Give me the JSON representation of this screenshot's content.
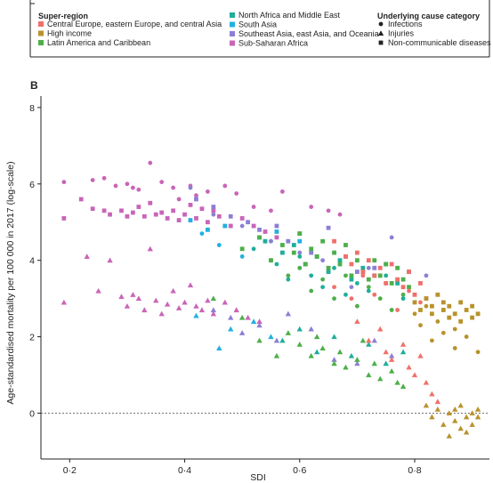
{
  "panel_label": "B",
  "chart_data": {
    "type": "scatter",
    "title": "",
    "xlabel": "SDI",
    "ylabel": "Age-standardised mortality per 100 000 in 2017 (log-scale)",
    "xlim": [
      0.15,
      0.93
    ],
    "ylim": [
      -1.2,
      8.3
    ],
    "xticks": [
      0.2,
      0.4,
      0.6,
      0.8
    ],
    "xtick_labels": [
      "0·2",
      "0·4",
      "0·6",
      "0·8"
    ],
    "yticks": [
      0,
      2,
      4,
      6,
      8
    ],
    "ytick_labels": [
      "0",
      "2",
      "4",
      "6",
      "8"
    ],
    "reference_line_y": 0,
    "legend": {
      "superregion_title": "Super-region",
      "superregions": [
        {
          "name": "Central Europe, eastern Europe, and central Asia",
          "color": "#f0706a"
        },
        {
          "name": "High income",
          "color": "#b8922c"
        },
        {
          "name": "Latin America and Caribbean",
          "color": "#4daf4a"
        },
        {
          "name": "North Africa and Middle East",
          "color": "#1fae9a"
        },
        {
          "name": "South Asia",
          "color": "#22b0e0"
        },
        {
          "name": "Southeast Asia, east Asia, and Oceania",
          "color": "#8c7fd4"
        },
        {
          "name": "Sub-Saharan Africa",
          "color": "#c965b8"
        }
      ],
      "cause_title": "Underlying cause category",
      "causes": [
        {
          "name": "Infections",
          "shape": "circle"
        },
        {
          "name": "Injuries",
          "shape": "triangle"
        },
        {
          "name": "Non-communicable diseases",
          "shape": "square"
        }
      ]
    },
    "series": [
      {
        "name": "Sub-Saharan Africa",
        "color": "#c965b8",
        "cause": "Infections",
        "x": [
          0.19,
          0.24,
          0.26,
          0.28,
          0.3,
          0.31,
          0.32,
          0.34,
          0.36,
          0.38,
          0.39,
          0.41,
          0.42,
          0.44,
          0.47,
          0.49,
          0.52,
          0.55,
          0.57,
          0.62,
          0.65,
          0.67
        ],
        "y": [
          6.05,
          6.1,
          6.15,
          5.95,
          6.0,
          5.9,
          5.85,
          6.55,
          6.05,
          5.9,
          5.6,
          5.95,
          5.7,
          5.8,
          5.95,
          5.75,
          5.4,
          5.3,
          5.8,
          5.4,
          5.3,
          5.2
        ]
      },
      {
        "name": "Sub-Saharan Africa",
        "color": "#c965b8",
        "cause": "Non-communicable diseases",
        "x": [
          0.19,
          0.22,
          0.24,
          0.26,
          0.27,
          0.29,
          0.3,
          0.31,
          0.32,
          0.33,
          0.34,
          0.35,
          0.36,
          0.37,
          0.38,
          0.39,
          0.4,
          0.41,
          0.42,
          0.43,
          0.44,
          0.45,
          0.46,
          0.48,
          0.5,
          0.52,
          0.54,
          0.56
        ],
        "y": [
          5.1,
          5.6,
          5.35,
          5.3,
          5.2,
          5.3,
          5.15,
          5.25,
          5.4,
          5.15,
          5.5,
          5.2,
          5.25,
          5.1,
          5.3,
          5.05,
          5.2,
          5.45,
          5.1,
          5.35,
          5.0,
          5.3,
          5.15,
          4.9,
          5.1,
          4.9,
          4.75,
          4.6
        ]
      },
      {
        "name": "Sub-Saharan Africa",
        "color": "#c965b8",
        "cause": "Injuries",
        "x": [
          0.19,
          0.23,
          0.25,
          0.27,
          0.29,
          0.3,
          0.31,
          0.32,
          0.33,
          0.34,
          0.35,
          0.36,
          0.37,
          0.38,
          0.39,
          0.4,
          0.41,
          0.42,
          0.43,
          0.44,
          0.45,
          0.47,
          0.49,
          0.51,
          0.53
        ],
        "y": [
          2.9,
          4.1,
          3.2,
          4.0,
          3.05,
          2.8,
          3.1,
          3.0,
          2.7,
          4.3,
          2.95,
          2.6,
          2.85,
          3.2,
          2.75,
          2.9,
          3.35,
          2.8,
          2.7,
          2.95,
          2.6,
          2.9,
          2.7,
          2.5,
          2.4
        ]
      },
      {
        "name": "South Asia",
        "color": "#22b0e0",
        "cause": "Infections",
        "x": [
          0.43,
          0.46,
          0.5,
          0.55,
          0.6,
          0.66
        ],
        "y": [
          4.7,
          4.4,
          4.1,
          4.5,
          3.8,
          4.2
        ]
      },
      {
        "name": "South Asia",
        "color": "#22b0e0",
        "cause": "Non-communicable diseases",
        "x": [
          0.41,
          0.44,
          0.47,
          0.53,
          0.56,
          0.6
        ],
        "y": [
          5.05,
          4.8,
          4.9,
          4.6,
          4.75,
          4.5
        ]
      },
      {
        "name": "South Asia",
        "color": "#22b0e0",
        "cause": "Injuries",
        "x": [
          0.42,
          0.46,
          0.48,
          0.52,
          0.55
        ],
        "y": [
          2.55,
          1.7,
          2.2,
          2.4,
          2.0
        ]
      },
      {
        "name": "Southeast Asia, east Asia, and Oceania",
        "color": "#8c7fd4",
        "cause": "Infections",
        "x": [
          0.41,
          0.45,
          0.5,
          0.55,
          0.6,
          0.64,
          0.69,
          0.72,
          0.76,
          0.82
        ],
        "y": [
          5.9,
          5.2,
          4.9,
          4.5,
          4.2,
          4.0,
          3.3,
          3.8,
          4.6,
          3.6
        ]
      },
      {
        "name": "Southeast Asia, east Asia, and Oceania",
        "color": "#8c7fd4",
        "cause": "Non-communicable diseases",
        "x": [
          0.42,
          0.45,
          0.48,
          0.51,
          0.53,
          0.56,
          0.58,
          0.6,
          0.62,
          0.65,
          0.68,
          0.7,
          0.73
        ],
        "y": [
          5.6,
          5.4,
          5.15,
          5.0,
          4.8,
          4.9,
          4.5,
          4.7,
          4.2,
          4.85,
          4.1,
          3.7,
          3.8
        ]
      },
      {
        "name": "Southeast Asia, east Asia, and Oceania",
        "color": "#8c7fd4",
        "cause": "Injuries",
        "x": [
          0.45,
          0.48,
          0.5,
          0.53,
          0.56,
          0.58,
          0.62,
          0.66,
          0.7,
          0.73,
          0.76
        ],
        "y": [
          2.7,
          2.5,
          2.1,
          2.3,
          1.9,
          2.6,
          2.2,
          1.4,
          1.3,
          1.9,
          1.5
        ]
      },
      {
        "name": "North Africa and Middle East",
        "color": "#1fae9a",
        "cause": "Infections",
        "x": [
          0.52,
          0.56,
          0.58,
          0.6,
          0.62,
          0.64,
          0.66,
          0.68,
          0.7,
          0.72,
          0.75,
          0.78
        ],
        "y": [
          4.3,
          3.9,
          3.5,
          4.1,
          3.6,
          3.3,
          3.8,
          3.1,
          3.4,
          3.2,
          3.6,
          3.0
        ]
      },
      {
        "name": "North Africa and Middle East",
        "color": "#1fae9a",
        "cause": "Non-communicable diseases",
        "x": [
          0.54,
          0.57,
          0.59,
          0.61,
          0.63,
          0.65,
          0.67,
          0.69,
          0.71,
          0.73,
          0.75,
          0.77,
          0.79
        ],
        "y": [
          4.5,
          4.2,
          4.4,
          3.9,
          4.1,
          3.7,
          4.0,
          3.5,
          3.8,
          3.6,
          3.9,
          3.4,
          3.7
        ]
      },
      {
        "name": "North Africa and Middle East",
        "color": "#1fae9a",
        "cause": "Injuries",
        "x": [
          0.57,
          0.6,
          0.63,
          0.66,
          0.69,
          0.72,
          0.75,
          0.78
        ],
        "y": [
          1.9,
          2.2,
          1.6,
          2.0,
          1.5,
          1.8,
          1.3,
          1.6
        ]
      },
      {
        "name": "Latin America and Caribbean",
        "color": "#4daf4a",
        "cause": "Infections",
        "x": [
          0.55,
          0.58,
          0.6,
          0.62,
          0.64,
          0.66,
          0.68,
          0.7,
          0.72,
          0.74,
          0.76,
          0.78
        ],
        "y": [
          4.0,
          3.6,
          3.8,
          3.2,
          3.5,
          3.0,
          3.6,
          2.8,
          3.3,
          3.0,
          2.7,
          3.1
        ]
      },
      {
        "name": "Latin America and Caribbean",
        "color": "#4daf4a",
        "cause": "Non-communicable diseases",
        "x": [
          0.5,
          0.53,
          0.55,
          0.57,
          0.59,
          0.6,
          0.61,
          0.62,
          0.63,
          0.64,
          0.65,
          0.66,
          0.67,
          0.68,
          0.69,
          0.7,
          0.71,
          0.72,
          0.73,
          0.74,
          0.75,
          0.76,
          0.77,
          0.78,
          0.79
        ],
        "y": [
          4.3,
          4.6,
          4.0,
          4.4,
          4.2,
          4.7,
          3.9,
          4.3,
          4.1,
          4.5,
          3.8,
          4.2,
          3.9,
          4.4,
          3.6,
          4.0,
          3.7,
          3.5,
          4.0,
          3.6,
          3.9,
          3.4,
          3.8,
          3.5,
          3.3
        ]
      },
      {
        "name": "Latin America and Caribbean",
        "color": "#4daf4a",
        "cause": "Injuries",
        "x": [
          0.45,
          0.5,
          0.53,
          0.56,
          0.58,
          0.6,
          0.62,
          0.63,
          0.64,
          0.66,
          0.67,
          0.68,
          0.7,
          0.71,
          0.72,
          0.73,
          0.74,
          0.76,
          0.77,
          0.78
        ],
        "y": [
          3.0,
          2.5,
          1.9,
          1.5,
          2.1,
          1.8,
          1.5,
          2.0,
          1.7,
          1.3,
          1.6,
          1.2,
          1.4,
          1.9,
          1.0,
          1.3,
          0.9,
          1.1,
          0.8,
          0.7
        ]
      },
      {
        "name": "Central Europe, eastern Europe, and central Asia",
        "color": "#f0706a",
        "cause": "Infections",
        "x": [
          0.66,
          0.69,
          0.71,
          0.73,
          0.75,
          0.77,
          0.79,
          0.81
        ],
        "y": [
          3.3,
          3.0,
          3.6,
          3.1,
          3.4,
          2.7,
          3.2,
          2.9
        ]
      },
      {
        "name": "Central Europe, eastern Europe, and central Asia",
        "color": "#f0706a",
        "cause": "Non-communicable diseases",
        "x": [
          0.66,
          0.68,
          0.69,
          0.7,
          0.71,
          0.72,
          0.73,
          0.74,
          0.75,
          0.76,
          0.77,
          0.78,
          0.79,
          0.8,
          0.81,
          0.82
        ],
        "y": [
          4.5,
          4.1,
          3.9,
          4.2,
          3.7,
          4.0,
          3.6,
          3.8,
          3.4,
          3.9,
          3.5,
          3.3,
          3.7,
          3.1,
          3.4,
          3.0
        ]
      },
      {
        "name": "Central Europe, eastern Europe, and central Asia",
        "color": "#f0706a",
        "cause": "Injuries",
        "x": [
          0.7,
          0.72,
          0.74,
          0.75,
          0.76,
          0.78,
          0.79,
          0.8,
          0.81,
          0.82,
          0.83,
          0.84
        ],
        "y": [
          2.4,
          1.9,
          2.2,
          1.6,
          1.4,
          1.8,
          1.2,
          1.0,
          1.5,
          0.8,
          0.5,
          0.3
        ]
      },
      {
        "name": "High income",
        "color": "#b8922c",
        "cause": "Infections",
        "x": [
          0.8,
          0.81,
          0.82,
          0.83,
          0.84,
          0.85,
          0.85,
          0.86,
          0.87,
          0.87,
          0.88,
          0.89,
          0.9,
          0.91
        ],
        "y": [
          2.6,
          2.3,
          2.8,
          1.9,
          2.4,
          2.1,
          2.7,
          2.5,
          1.7,
          2.2,
          2.9,
          2.0,
          2.5,
          1.6
        ]
      },
      {
        "name": "High income",
        "color": "#b8922c",
        "cause": "Non-communicable diseases",
        "x": [
          0.8,
          0.81,
          0.82,
          0.83,
          0.83,
          0.84,
          0.85,
          0.85,
          0.86,
          0.86,
          0.87,
          0.88,
          0.88,
          0.89,
          0.9,
          0.9,
          0.91
        ],
        "y": [
          2.9,
          2.7,
          3.0,
          2.6,
          2.8,
          3.1,
          2.7,
          2.9,
          2.5,
          2.8,
          2.6,
          2.9,
          2.4,
          2.7,
          2.5,
          2.8,
          2.6
        ]
      },
      {
        "name": "High income",
        "color": "#b8922c",
        "cause": "Injuries",
        "x": [
          0.82,
          0.83,
          0.84,
          0.85,
          0.86,
          0.86,
          0.87,
          0.87,
          0.88,
          0.88,
          0.89,
          0.89,
          0.9,
          0.9,
          0.91,
          0.91
        ],
        "y": [
          0.2,
          -0.1,
          0.1,
          -0.3,
          0.0,
          -0.6,
          -0.2,
          0.1,
          -0.4,
          0.2,
          -0.1,
          -0.5,
          0.0,
          -0.3,
          -0.1,
          0.1
        ]
      }
    ]
  }
}
